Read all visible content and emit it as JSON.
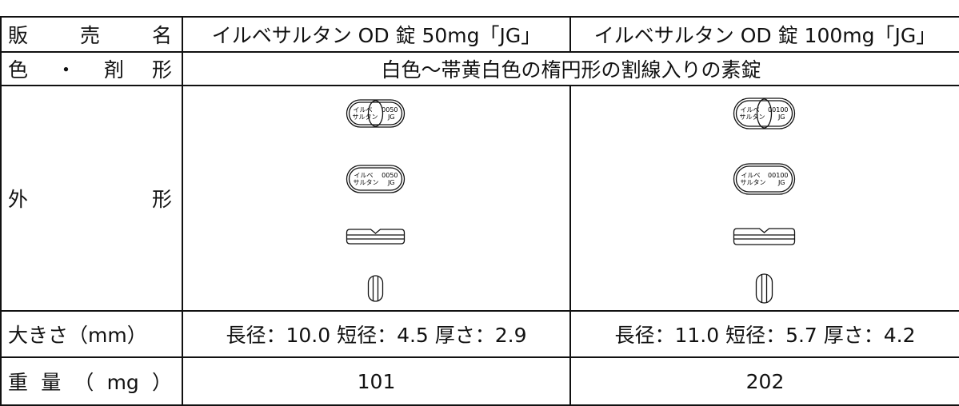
{
  "table": {
    "rows": [
      {
        "label": "販売名",
        "cells": [
          "イルベサルタン OD 錠 50mg「JG」",
          "イルベサルタン OD 錠 100mg「JG」"
        ]
      },
      {
        "label": "色・剤形",
        "cells": [
          "白色～帯黄白色の楕円形の割線入りの素錠"
        ]
      },
      {
        "label": "外形",
        "imprints": [
          [
            "イルベ",
            "サルタン",
            "0050",
            "JG"
          ],
          [
            "イルベ",
            "サルタン",
            "00100",
            "JG"
          ]
        ]
      },
      {
        "label": "大きさ（mm）",
        "cells": [
          "長径：10.0 短径：4.5 厚さ：2.9",
          "長径：11.0 短径：5.7 厚さ：4.2"
        ]
      },
      {
        "label": "重量（mg）",
        "cells": [
          "101",
          "202"
        ]
      }
    ]
  }
}
